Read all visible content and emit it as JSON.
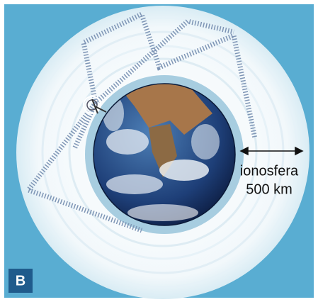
{
  "diagram": {
    "layer_label": "ionosfera",
    "distance_label": "500 km",
    "panel_label": "B"
  }
}
